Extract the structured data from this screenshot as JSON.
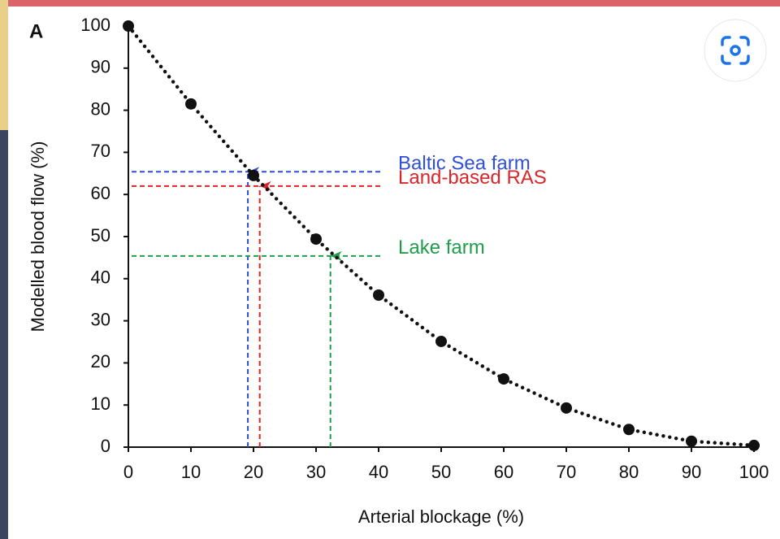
{
  "chart_data": {
    "type": "scatter",
    "panel_label": "A",
    "x_label": "Arterial blockage (%)",
    "y_label": "Modelled blood flow (%)",
    "xlim": [
      0,
      100
    ],
    "ylim": [
      0,
      100
    ],
    "xticks": [
      0,
      10,
      20,
      30,
      40,
      50,
      60,
      70,
      80,
      90,
      100
    ],
    "yticks": [
      0,
      10,
      20,
      30,
      40,
      50,
      60,
      70,
      80,
      90,
      100
    ],
    "x": [
      0,
      10,
      20,
      30,
      40,
      50,
      60,
      70,
      80,
      90,
      100
    ],
    "values": [
      100,
      81.5,
      64.5,
      49.4,
      36.1,
      25.1,
      16.2,
      9.3,
      4.2,
      1.4,
      0.4
    ],
    "color": "#111111",
    "annotations": [
      {
        "label": "Baltic Sea farm",
        "color": "#2f4fd6",
        "x": 19.1,
        "y": 65.4
      },
      {
        "label": "Land-based RAS",
        "color": "#d8262a",
        "x": 21.0,
        "y": 62.0
      },
      {
        "label": "Lake farm",
        "color": "#1e9e4a",
        "x": 32.3,
        "y": 45.4
      }
    ]
  }
}
